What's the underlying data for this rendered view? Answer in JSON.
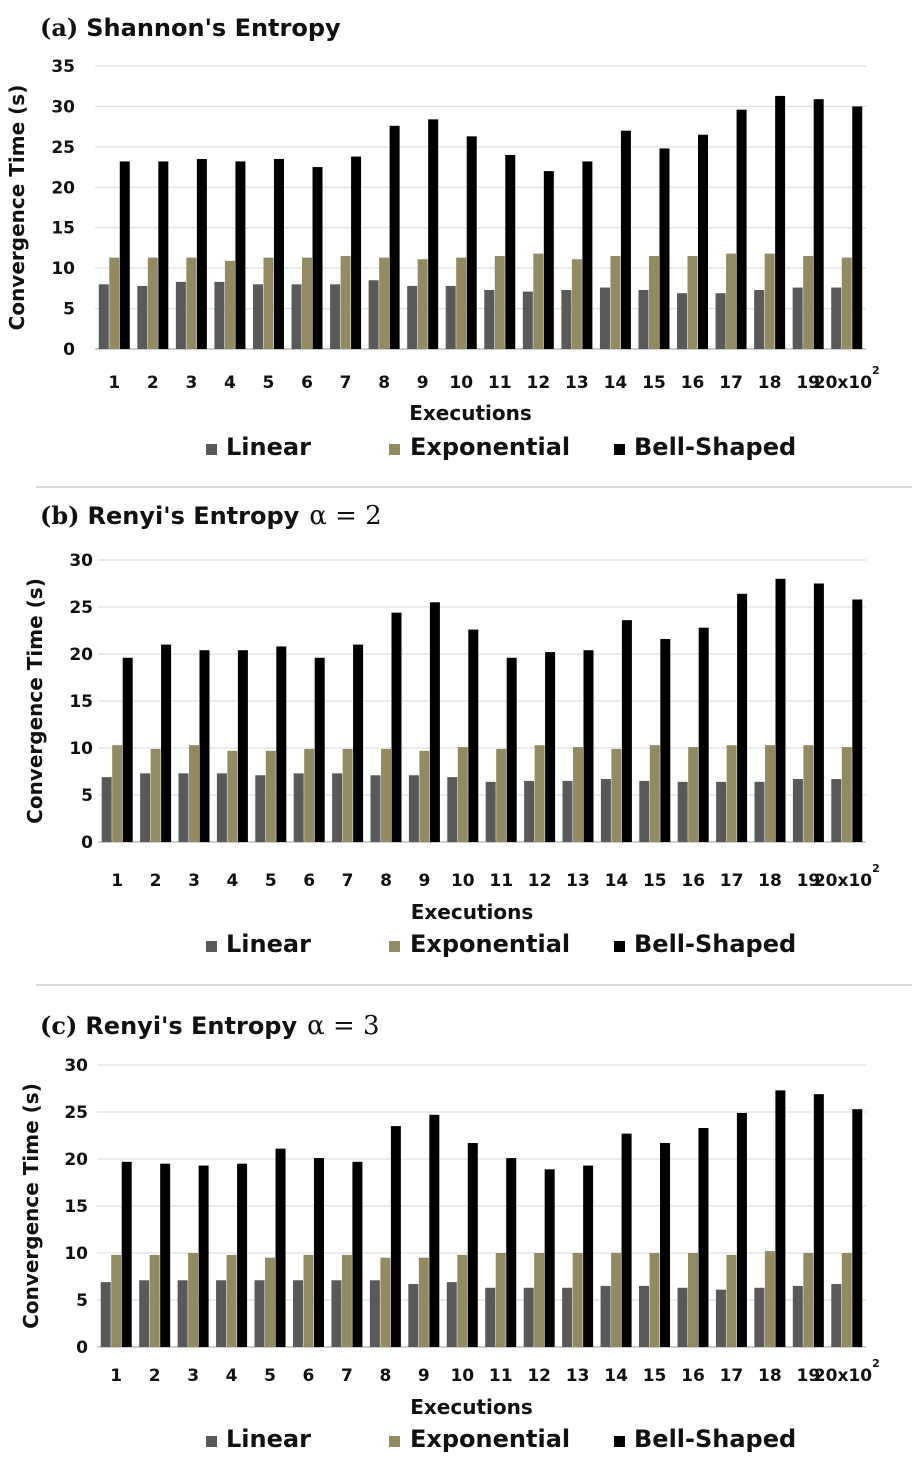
{
  "chart_data": [
    {
      "type": "bar",
      "panel_letter": "(a)",
      "title": "Shannon's Entropy",
      "alpha": "",
      "xlabel": "Executions",
      "ylabel": "Convergence Time (s)",
      "ylim": [
        0,
        35
      ],
      "yticks": [
        "0",
        "5",
        "10",
        "15",
        "20",
        "25",
        "30",
        "35"
      ],
      "categories": [
        "1",
        "2",
        "3",
        "4",
        "5",
        "6",
        "7",
        "8",
        "9",
        "10",
        "11",
        "12",
        "13",
        "14",
        "15",
        "16",
        "17",
        "18",
        "19",
        "20x10"
      ],
      "last_category_superscript": "2",
      "grid": true,
      "legend_position": "bottom",
      "series": [
        {
          "name": "Linear",
          "color": "#595959",
          "values": [
            8,
            7.8,
            8.3,
            8.3,
            8,
            8,
            8,
            8.5,
            7.8,
            7.8,
            7.3,
            7.1,
            7.3,
            7.6,
            7.3,
            6.9,
            6.9,
            7.3,
            7.6,
            7.6
          ]
        },
        {
          "name": "Exponential",
          "color": "#948a5f",
          "values": [
            11.3,
            11.3,
            11.3,
            10.9,
            11.3,
            11.3,
            11.5,
            11.3,
            11.1,
            11.3,
            11.5,
            11.8,
            11.1,
            11.5,
            11.5,
            11.5,
            11.8,
            11.8,
            11.5,
            11.3
          ]
        },
        {
          "name": "Bell-Shaped",
          "color": "#000000",
          "values": [
            23.2,
            23.2,
            23.5,
            23.2,
            23.5,
            22.5,
            23.8,
            27.6,
            28.4,
            26.3,
            24,
            22,
            23.2,
            27,
            24.8,
            26.5,
            29.6,
            31.3,
            30.9,
            30
          ]
        }
      ]
    },
    {
      "type": "bar",
      "panel_letter": "(b)",
      "title": "Renyi's Entropy",
      "alpha": "α = 2",
      "xlabel": "Executions",
      "ylabel": "Convergence Time (s)",
      "ylim": [
        0,
        30
      ],
      "yticks": [
        "0",
        "5",
        "10",
        "15",
        "20",
        "25",
        "30"
      ],
      "categories": [
        "1",
        "2",
        "3",
        "4",
        "5",
        "6",
        "7",
        "8",
        "9",
        "10",
        "11",
        "12",
        "13",
        "14",
        "15",
        "16",
        "17",
        "18",
        "19",
        "20x10"
      ],
      "last_category_superscript": "2",
      "grid": true,
      "legend_position": "bottom",
      "series": [
        {
          "name": "Linear",
          "color": "#595959",
          "values": [
            6.9,
            7.3,
            7.3,
            7.3,
            7.1,
            7.3,
            7.3,
            7.1,
            7.1,
            6.9,
            6.4,
            6.5,
            6.5,
            6.7,
            6.5,
            6.4,
            6.4,
            6.4,
            6.7,
            6.7
          ]
        },
        {
          "name": "Exponential",
          "color": "#948a5f",
          "values": [
            10.3,
            9.9,
            10.3,
            9.7,
            9.7,
            9.9,
            9.9,
            9.9,
            9.7,
            10.1,
            9.9,
            10.3,
            10.1,
            9.9,
            10.3,
            10.1,
            10.3,
            10.3,
            10.3,
            10.1
          ]
        },
        {
          "name": "Bell-Shaped",
          "color": "#000000",
          "values": [
            19.6,
            21,
            20.4,
            20.4,
            20.8,
            19.6,
            21,
            24.4,
            25.5,
            22.6,
            19.6,
            20.2,
            20.4,
            23.6,
            21.6,
            22.8,
            26.4,
            28,
            27.5,
            25.8
          ]
        }
      ]
    },
    {
      "type": "bar",
      "panel_letter": "(c)",
      "title": "Renyi's Entropy",
      "alpha": "α = 3",
      "xlabel": "Executions",
      "ylabel": "Convergence Time (s)",
      "ylim": [
        0,
        30
      ],
      "yticks": [
        "0",
        "5",
        "10",
        "15",
        "20",
        "25",
        "30"
      ],
      "categories": [
        "1",
        "2",
        "3",
        "4",
        "5",
        "6",
        "7",
        "8",
        "9",
        "10",
        "11",
        "12",
        "13",
        "14",
        "15",
        "16",
        "17",
        "18",
        "19",
        "20x10"
      ],
      "last_category_superscript": "2",
      "grid": true,
      "legend_position": "bottom",
      "series": [
        {
          "name": "Linear",
          "color": "#595959",
          "values": [
            6.9,
            7.1,
            7.1,
            7.1,
            7.1,
            7.1,
            7.1,
            7.1,
            6.7,
            6.9,
            6.3,
            6.3,
            6.3,
            6.5,
            6.5,
            6.3,
            6.1,
            6.3,
            6.5,
            6.7
          ]
        },
        {
          "name": "Exponential",
          "color": "#948a5f",
          "values": [
            9.8,
            9.8,
            10,
            9.8,
            9.5,
            9.8,
            9.8,
            9.5,
            9.5,
            9.8,
            10,
            10,
            10,
            10,
            10,
            10,
            9.8,
            10.2,
            10,
            10
          ]
        },
        {
          "name": "Bell-Shaped",
          "color": "#000000",
          "values": [
            19.7,
            19.5,
            19.3,
            19.5,
            21.1,
            20.1,
            19.7,
            23.5,
            24.7,
            21.7,
            20.1,
            18.9,
            19.3,
            22.7,
            21.7,
            23.3,
            24.9,
            27.3,
            26.9,
            25.3
          ]
        }
      ]
    }
  ]
}
